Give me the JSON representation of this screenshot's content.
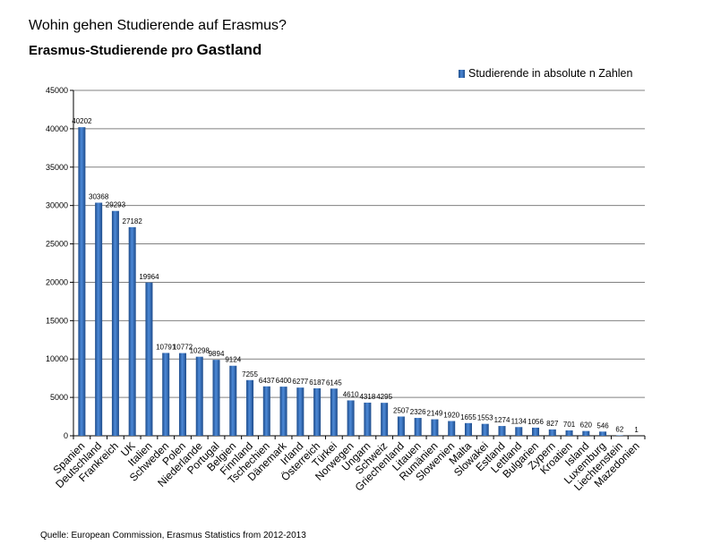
{
  "header": {
    "title": "Wohin gehen Studierende auf Erasmus?",
    "subtitle_prefix": "Erasmus-Studierende pro ",
    "subtitle_emph": "Gastland"
  },
  "source_note": "Quelle: European Commission, Erasmus Statistics from 2012-2013",
  "chart_data": {
    "type": "bar",
    "categories": [
      "Spanien",
      "Deutschland",
      "Frankreich",
      "UK",
      "Italien",
      "Schweden",
      "Polen",
      "Niederlande",
      "Portugal",
      "Belgien",
      "Finnland",
      "Tschechien",
      "Dänemark",
      "Irland",
      "Österreich",
      "Türkei",
      "Norwegen",
      "Ungarn",
      "Schweiz",
      "Griechenland",
      "Litauen",
      "Rumänien",
      "Slowenien",
      "Malta",
      "Slowakei",
      "Estland",
      "Lettland",
      "Bulgarien",
      "Zypern",
      "Kroatien",
      "Island",
      "Luxemburg",
      "Liechtenstein",
      "Mazedonien"
    ],
    "series": [
      {
        "name": "Studierende in absolute n Zahlen",
        "values": [
          40202,
          30368,
          29293,
          27182,
          19964,
          10791,
          10772,
          10298,
          9894,
          9124,
          7255,
          6437,
          6400,
          6277,
          6187,
          6145,
          4610,
          4318,
          4295,
          2507,
          2326,
          2149,
          1920,
          1655,
          1553,
          1274,
          1134,
          1056,
          827,
          701,
          620,
          546,
          62,
          1
        ],
        "labels": [
          "40202",
          "30368",
          "29293",
          "27182",
          "19964",
          "10791",
          "10772",
          "10298",
          "9894",
          "9124",
          "7255",
          "6437",
          "6400",
          "6277",
          "6187",
          "6145",
          "4610",
          "4318",
          "4295",
          "2507",
          "2326",
          "2149",
          "1920",
          "1655",
          "1553",
          "1274",
          "1134",
          "1056",
          "827",
          "701",
          "620",
          "546",
          "62",
          "1"
        ],
        "color": "#3a75c4"
      }
    ],
    "ylim": [
      0,
      45000
    ],
    "yticks": [
      0,
      5000,
      10000,
      15000,
      20000,
      25000,
      30000,
      35000,
      40000,
      45000
    ],
    "grid": true,
    "legend_position": "top-right"
  }
}
